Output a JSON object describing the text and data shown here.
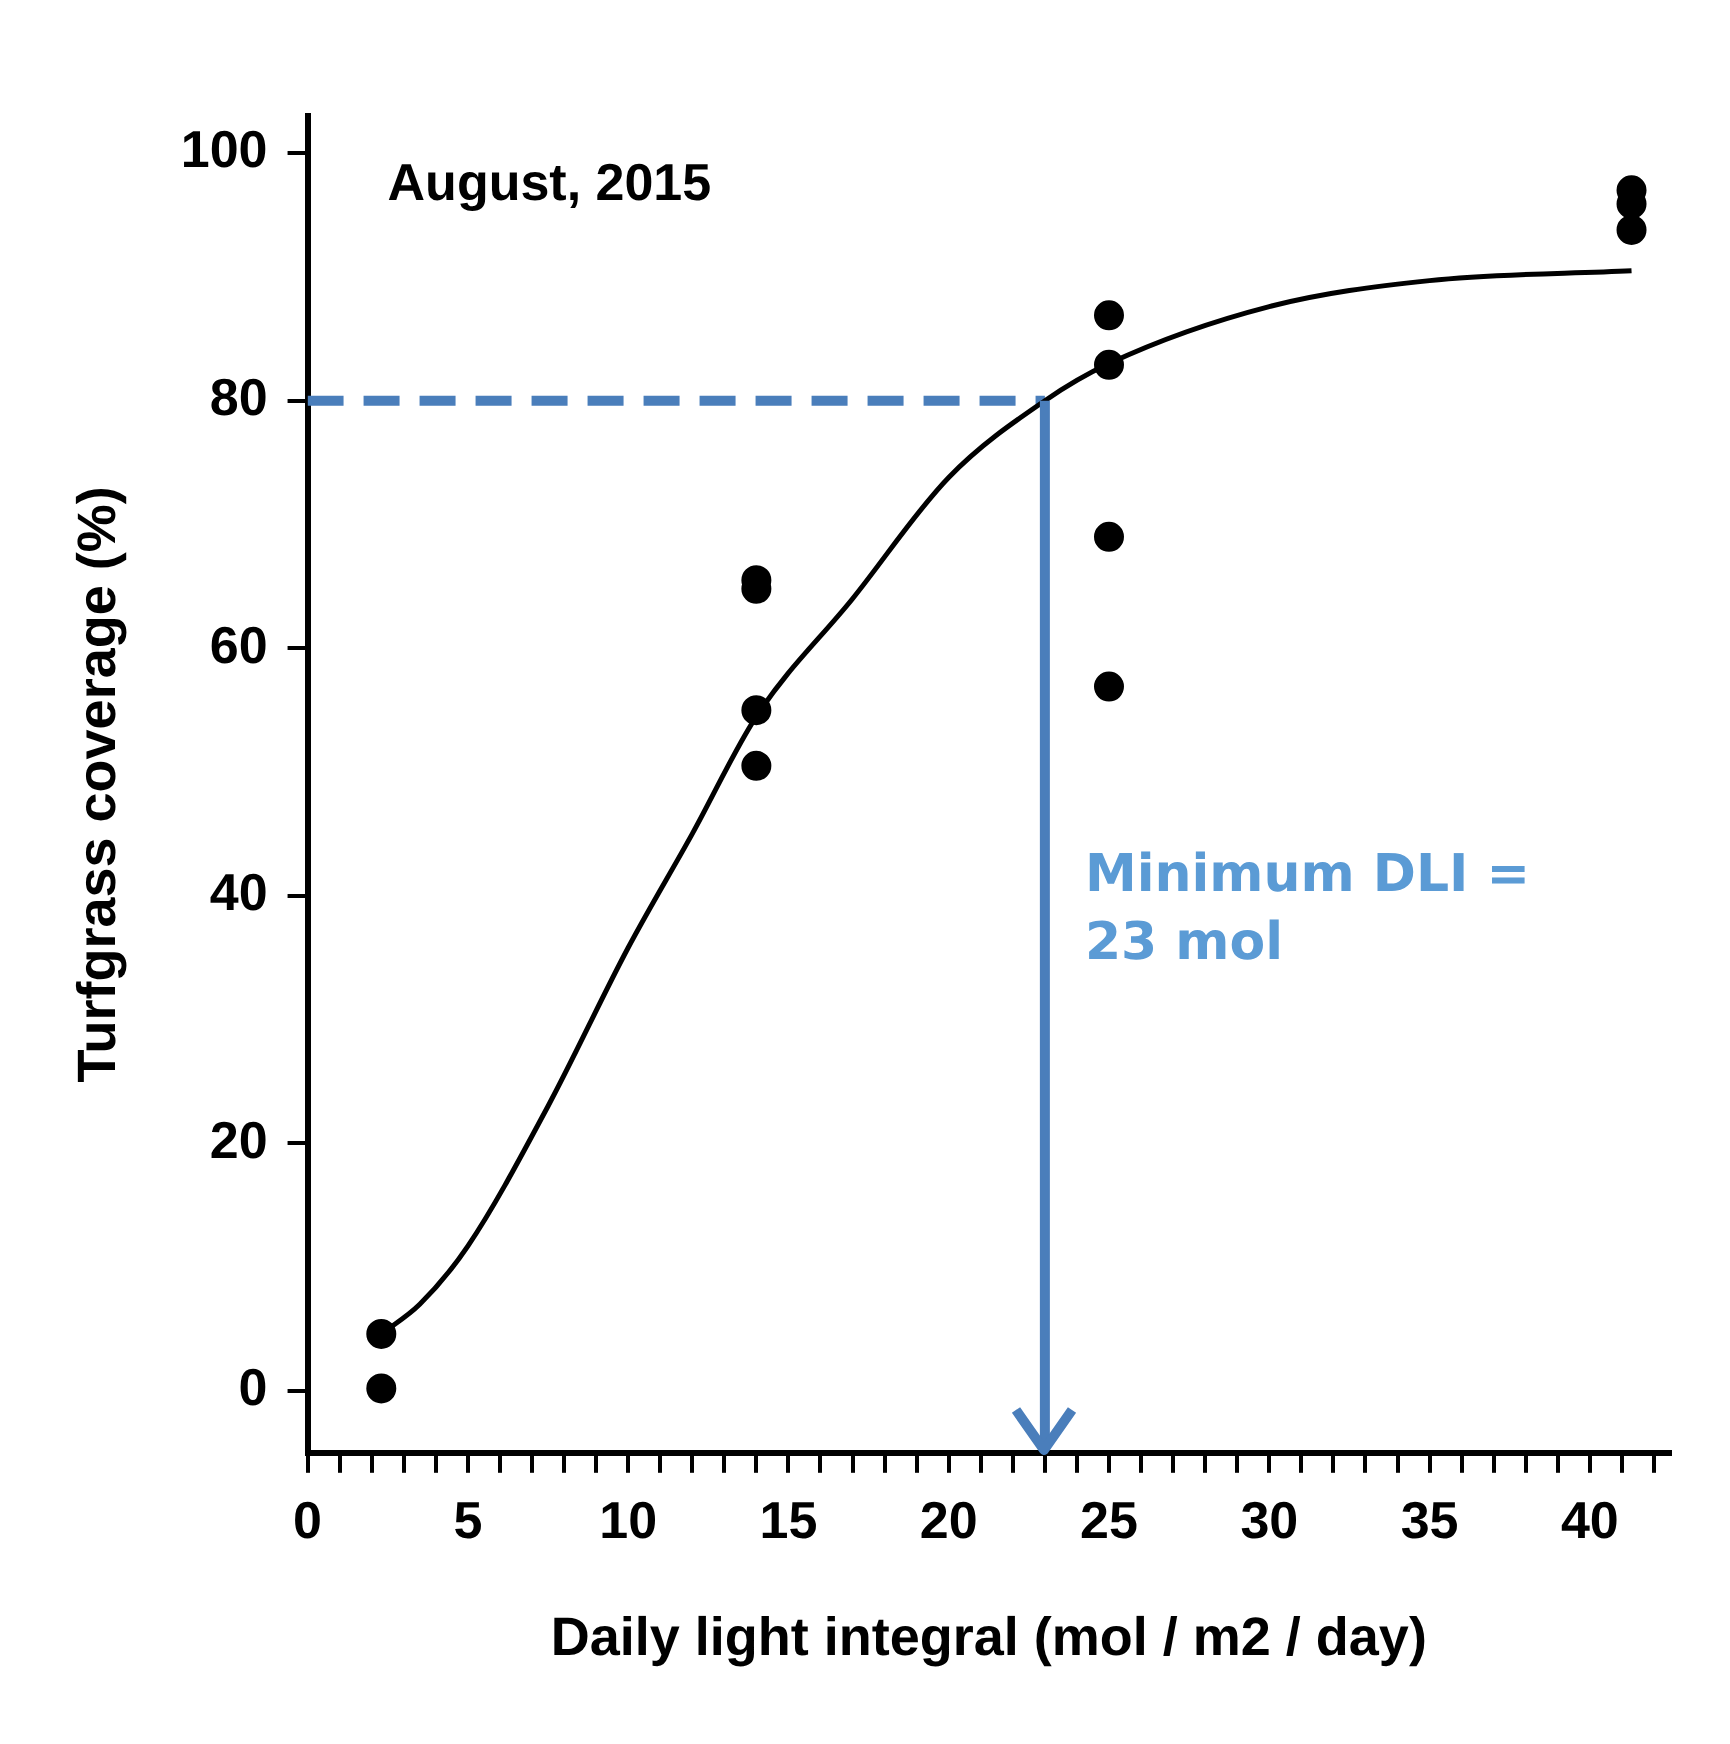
{
  "chart_data": {
    "type": "scatter",
    "xlabel": "Daily light integral (mol / m2 / day)",
    "ylabel": "Turfgrass coverage (%)",
    "annotations": [
      "August, 2015"
    ],
    "ref_lines": [
      {
        "axis": "x",
        "value": 23,
        "label": "Minimum DLI = 23 mol",
        "color": "#4a7ebb",
        "line_style": "solid"
      }
    ],
    "xlim": [
      0,
      42.5
    ],
    "ylim": [
      -5,
      103
    ],
    "xticks": [
      0,
      {
        "value": 1,
        "label": null
      },
      {
        "value": 2,
        "label": null
      },
      {
        "value": 3,
        "label": null
      },
      {
        "value": 4,
        "label": null
      },
      5,
      {
        "value": 6,
        "label": null
      },
      {
        "value": 7,
        "label": null
      },
      {
        "value": 8,
        "label": null
      },
      {
        "value": 9,
        "label": null
      },
      10,
      {
        "value": 11,
        "label": null
      },
      {
        "value": 12,
        "label": null
      },
      {
        "value": 13,
        "label": null
      },
      {
        "value": 14,
        "label": null
      },
      15,
      {
        "value": 16,
        "label": null
      },
      {
        "value": 17,
        "label": null
      },
      {
        "value": 18,
        "label": null
      },
      {
        "value": 19,
        "label": null
      },
      20,
      {
        "value": 21,
        "label": null
      },
      {
        "value": 22,
        "label": null
      },
      {
        "value": 23,
        "label": null
      },
      {
        "value": 24,
        "label": null
      },
      25,
      {
        "value": 26,
        "label": null
      },
      {
        "value": 27,
        "label": null
      },
      {
        "value": 28,
        "label": null
      },
      {
        "value": 29,
        "label": null
      },
      30,
      {
        "value": 31,
        "label": null
      },
      {
        "value": 32,
        "label": null
      },
      {
        "value": 33,
        "label": null
      },
      {
        "value": 34,
        "label": null
      },
      35,
      {
        "value": 36,
        "label": null
      },
      {
        "value": 37,
        "label": null
      },
      {
        "value": 38,
        "label": null
      },
      {
        "value": 39,
        "label": null
      },
      40,
      {
        "value": 41,
        "label": null
      },
      {
        "value": 42,
        "label": null
      }
    ],
    "yticks": [
      0,
      20,
      40,
      60,
      80,
      100
    ],
    "grid": false,
    "legend": false,
    "series": [
      {
        "type": "scatter",
        "color": "#000000",
        "marker": "circle",
        "x": [
          2.3,
          2.3,
          14,
          14,
          14,
          14,
          25,
          25,
          25,
          25,
          41.3,
          41.3,
          41.3
        ],
        "values": [
          4.6,
          0.2,
          65.5,
          64.8,
          55,
          50.5,
          86.9,
          82.9,
          69,
          56.9,
          97,
          95.9,
          93.8
        ]
      },
      {
        "type": "line",
        "color": "#000000",
        "marker": "none",
        "line_style": "solid",
        "x": [
          2.3,
          3.5,
          5,
          7.5,
          10,
          12,
          14,
          17,
          20,
          23,
          25,
          30,
          35,
          41.3
        ],
        "values": [
          4.6,
          7,
          11.7,
          23,
          35.8,
          45,
          54.5,
          64,
          73.8,
          80,
          83,
          87.6,
          89.7,
          90.5
        ]
      },
      {
        "type": "line",
        "color": "#4a7ebb",
        "marker": "none",
        "line_style": "dashed",
        "x": [
          0,
          23
        ],
        "values": [
          80,
          80
        ]
      }
    ]
  }
}
